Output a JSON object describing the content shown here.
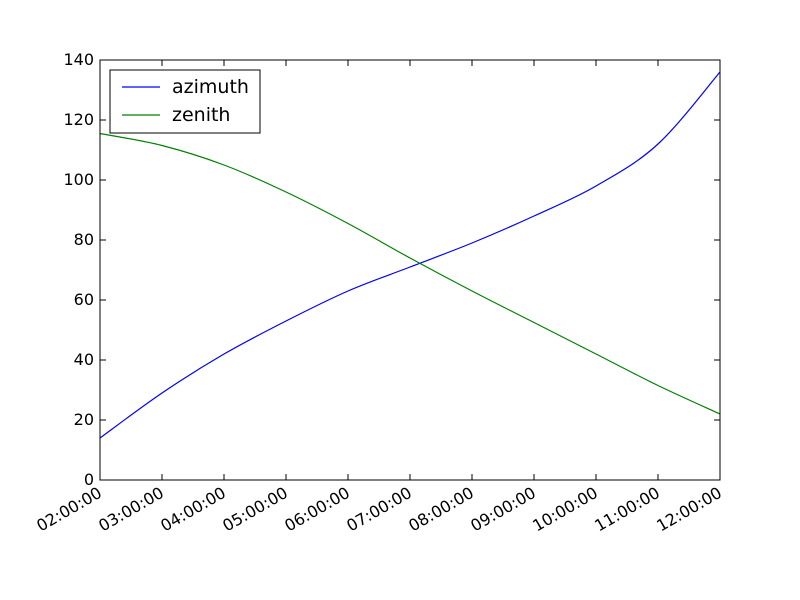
{
  "chart_data": {
    "type": "line",
    "title": "",
    "xlabel": "",
    "ylabel": "",
    "x_type": "time",
    "xlim": [
      "02:00:00",
      "12:00:00"
    ],
    "ylim": [
      0,
      140
    ],
    "x_ticks": [
      "02:00:00",
      "03:00:00",
      "04:00:00",
      "05:00:00",
      "06:00:00",
      "07:00:00",
      "08:00:00",
      "09:00:00",
      "10:00:00",
      "11:00:00",
      "12:00:00"
    ],
    "y_ticks": [
      "0",
      "20",
      "40",
      "60",
      "80",
      "100",
      "120",
      "140"
    ],
    "x": [
      "02:00:00",
      "03:00:00",
      "04:00:00",
      "05:00:00",
      "06:00:00",
      "07:00:00",
      "08:00:00",
      "09:00:00",
      "10:00:00",
      "11:00:00",
      "12:00:00"
    ],
    "series": [
      {
        "name": "azimuth",
        "color": "#0000ff",
        "values": [
          14,
          29,
          42,
          53,
          63,
          71,
          79,
          88,
          98,
          112,
          136
        ]
      },
      {
        "name": "zenith",
        "color": "#008000",
        "values": [
          115.5,
          111.5,
          105,
          96,
          85.5,
          74,
          63,
          52.5,
          42,
          31.5,
          22
        ]
      }
    ],
    "grid": false,
    "legend_position": "upper-left"
  }
}
